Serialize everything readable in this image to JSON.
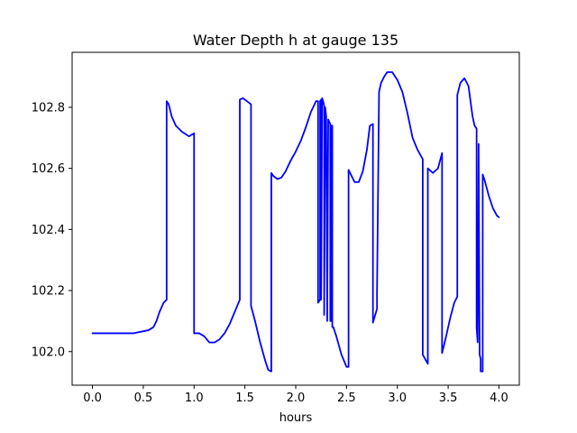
{
  "chart_data": {
    "type": "line",
    "title": "Water Depth h at gauge 135",
    "xlabel": "hours",
    "ylabel": "",
    "xlim": [
      -0.2,
      4.2
    ],
    "ylim": [
      101.89,
      102.98
    ],
    "x_ticks": [
      0.0,
      0.5,
      1.0,
      1.5,
      2.0,
      2.5,
      3.0,
      3.5,
      4.0
    ],
    "x_tick_labels": [
      "0.0",
      "0.5",
      "1.0",
      "1.5",
      "2.0",
      "2.5",
      "3.0",
      "3.5",
      "4.0"
    ],
    "y_ticks": [
      102.0,
      102.2,
      102.4,
      102.6,
      102.8
    ],
    "y_tick_labels": [
      "102.0",
      "102.2",
      "102.4",
      "102.6",
      "102.8"
    ],
    "grid": false,
    "series": [
      {
        "color": "#0000ff",
        "x": [
          0.0,
          0.2,
          0.4,
          0.55,
          0.6,
          0.63,
          0.66,
          0.7,
          0.73,
          0.73,
          0.75,
          0.78,
          0.82,
          0.88,
          0.95,
          1.0,
          1.0,
          1.05,
          1.1,
          1.15,
          1.2,
          1.25,
          1.3,
          1.35,
          1.4,
          1.45,
          1.45,
          1.48,
          1.52,
          1.56,
          1.56,
          1.6,
          1.65,
          1.7,
          1.73,
          1.76,
          1.76,
          1.78,
          1.82,
          1.86,
          1.9,
          1.95,
          2.0,
          2.05,
          2.1,
          2.15,
          2.2,
          2.22,
          2.22,
          2.24,
          2.24,
          2.25,
          2.25,
          2.26,
          2.27,
          2.28,
          2.28,
          2.29,
          2.3,
          2.31,
          2.32,
          2.34,
          2.34,
          2.35,
          2.35,
          2.36,
          2.36,
          2.37,
          2.37,
          2.38,
          2.4,
          2.45,
          2.5,
          2.52,
          2.52,
          2.55,
          2.58,
          2.62,
          2.66,
          2.7,
          2.73,
          2.76,
          2.76,
          2.8,
          2.8,
          2.82,
          2.84,
          2.87,
          2.9,
          2.95,
          3.0,
          3.05,
          3.1,
          3.15,
          3.2,
          3.25,
          3.25,
          3.3,
          3.3,
          3.35,
          3.4,
          3.44,
          3.44,
          3.48,
          3.52,
          3.56,
          3.59,
          3.59,
          3.62,
          3.66,
          3.7,
          3.74,
          3.76,
          3.78,
          3.78,
          3.79,
          3.8,
          3.8,
          3.81,
          3.82,
          3.82,
          3.84,
          3.84,
          3.86,
          3.9,
          3.94,
          3.98,
          4.0
        ],
        "y": [
          102.06,
          102.06,
          102.06,
          102.07,
          102.08,
          102.1,
          102.13,
          102.16,
          102.17,
          102.82,
          102.81,
          102.77,
          102.74,
          102.72,
          102.705,
          102.715,
          102.06,
          102.06,
          102.05,
          102.03,
          102.03,
          102.04,
          102.06,
          102.09,
          102.13,
          102.17,
          102.825,
          102.83,
          102.82,
          102.81,
          102.15,
          102.1,
          102.03,
          101.97,
          101.94,
          101.935,
          102.585,
          102.575,
          102.565,
          102.57,
          102.59,
          102.625,
          102.655,
          102.69,
          102.735,
          102.785,
          102.82,
          102.82,
          102.16,
          102.17,
          102.82,
          102.825,
          102.17,
          102.83,
          102.82,
          102.805,
          102.12,
          102.8,
          102.77,
          102.1,
          102.76,
          102.745,
          102.1,
          102.1,
          102.74,
          102.74,
          102.08,
          102.08,
          102.08,
          102.07,
          102.05,
          101.99,
          101.95,
          101.95,
          102.595,
          102.575,
          102.555,
          102.555,
          102.59,
          102.66,
          102.74,
          102.745,
          102.095,
          102.14,
          102.195,
          102.85,
          102.88,
          102.9,
          102.915,
          102.915,
          102.89,
          102.85,
          102.78,
          102.7,
          102.66,
          102.63,
          101.99,
          101.96,
          102.6,
          102.585,
          102.6,
          102.65,
          101.995,
          102.05,
          102.11,
          102.16,
          102.18,
          102.84,
          102.88,
          102.895,
          102.87,
          102.77,
          102.74,
          102.73,
          102.08,
          102.03,
          102.68,
          102.66,
          101.99,
          101.975,
          101.935,
          101.935,
          102.58,
          102.56,
          102.51,
          102.47,
          102.445,
          102.44
        ]
      }
    ]
  }
}
